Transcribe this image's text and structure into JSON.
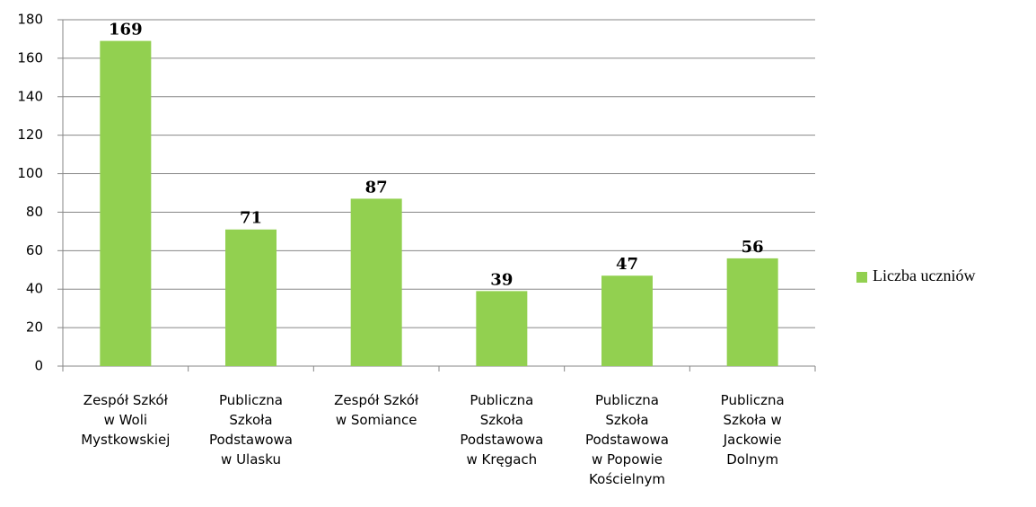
{
  "chart_data": {
    "type": "bar",
    "categories": [
      "Zespół Szkół\nw Woli\nMystkowskiej",
      "Publiczna\nSzkoła\nPodstawowa\nw Ulasku",
      "Zespół Szkół\nw Somiance",
      "Publiczna\nSzkoła\nPodstawowa\nw Kręgach",
      "Publiczna\nSzkoła\nPodstawowa\nw Popowie\nKościelnym",
      "Publiczna\nSzkoła w\nJackowie\nDolnym"
    ],
    "series": [
      {
        "name": "Liczba uczniów",
        "color": "#92d050",
        "values": [
          169,
          71,
          87,
          39,
          47,
          56
        ]
      }
    ],
    "ylim": [
      0,
      180
    ],
    "yticks": [
      0,
      20,
      40,
      60,
      80,
      100,
      120,
      140,
      160,
      180
    ],
    "grid": true,
    "legend": "right"
  }
}
